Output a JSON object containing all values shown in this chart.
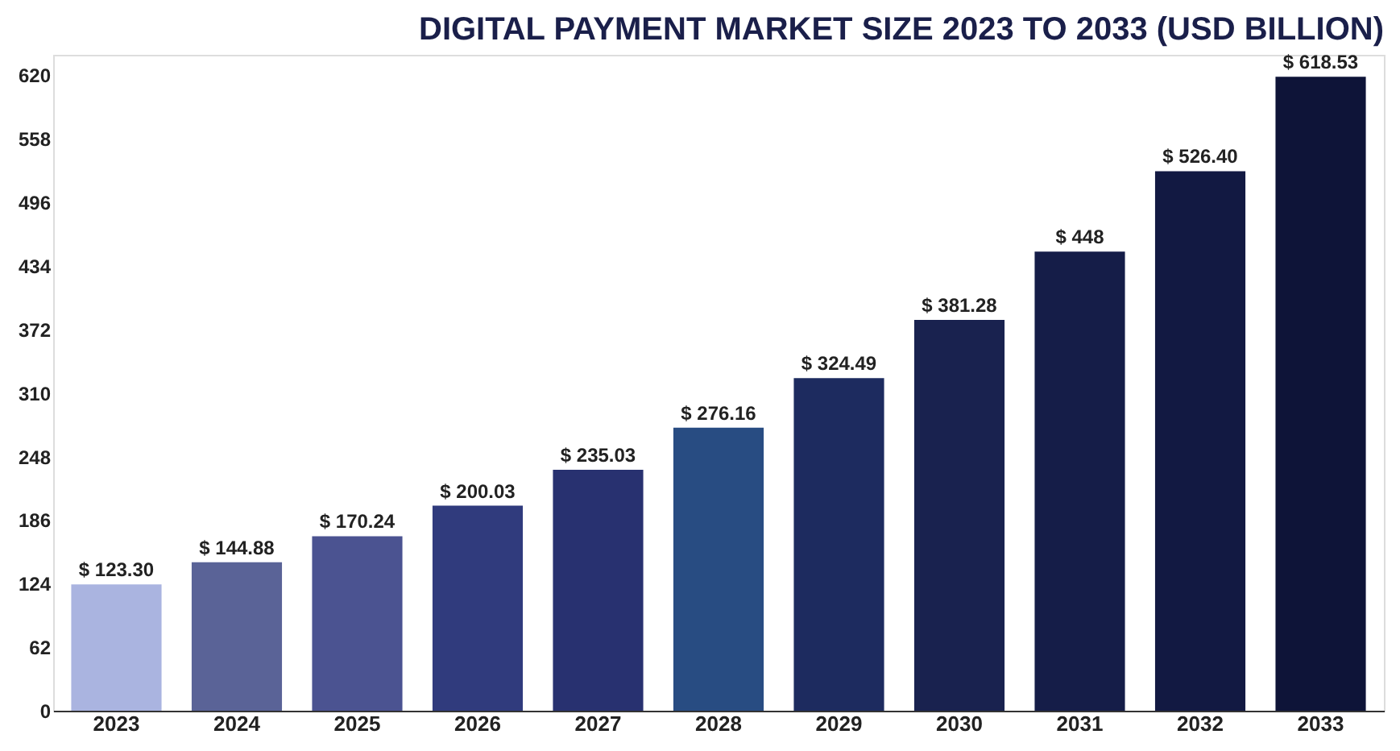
{
  "chart_data": {
    "type": "bar",
    "title": "DIGITAL PAYMENT MARKET SIZE 2023 TO 2033 (USD BILLION)",
    "categories": [
      "2023",
      "2024",
      "2025",
      "2026",
      "2027",
      "2028",
      "2029",
      "2030",
      "2031",
      "2032",
      "2033"
    ],
    "values": [
      123.3,
      144.88,
      170.24,
      200.03,
      235.03,
      276.16,
      324.49,
      381.28,
      448,
      526.4,
      618.53
    ],
    "value_labels": [
      "$ 123.30",
      "$ 144.88",
      "$ 170.24",
      "$ 200.03",
      "$ 235.03",
      "$ 276.16",
      "$ 324.49",
      "$ 381.28",
      "$ 448",
      "$ 526.40",
      "$ 618.53"
    ],
    "colors": [
      "#aab4e0",
      "#5a6397",
      "#4b5391",
      "#303b7d",
      "#283170",
      "#284c82",
      "#1d2b5f",
      "#19224f",
      "#151d48",
      "#121942",
      "#0e1438"
    ],
    "ylim": [
      0,
      640
    ],
    "yticks": [
      0,
      62,
      124,
      186,
      248,
      310,
      372,
      434,
      496,
      558,
      620
    ],
    "grid": false
  }
}
